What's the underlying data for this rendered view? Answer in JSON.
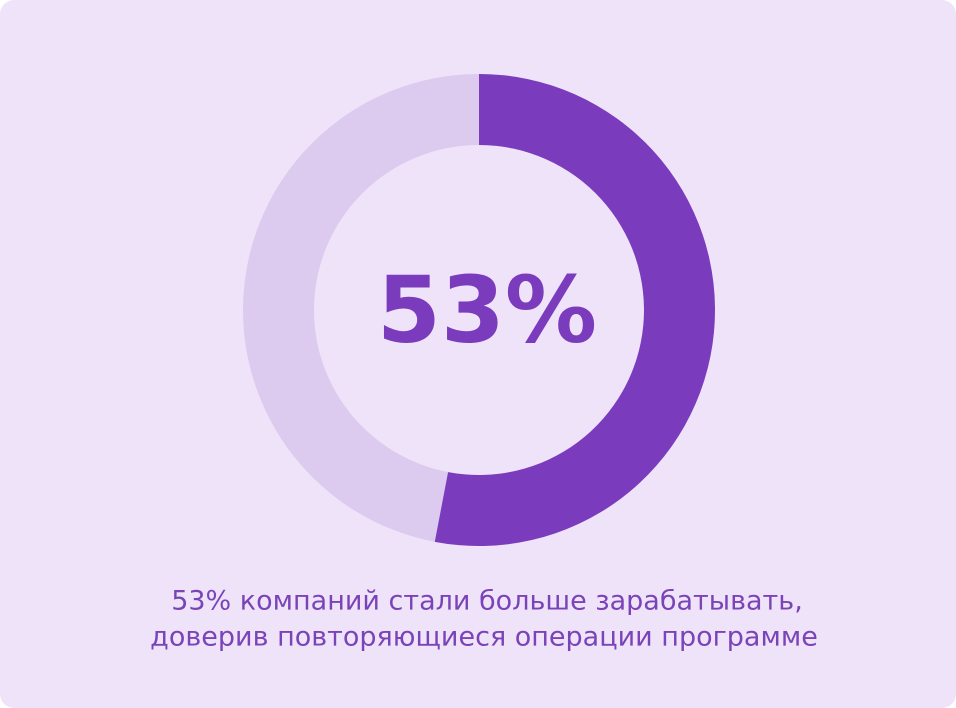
{
  "chart_data": {
    "type": "donut",
    "values": [
      53
    ],
    "value_labels": [
      "53%"
    ],
    "color": "#7a3bbd",
    "track_color": "#dccbef",
    "caption": [
      "53% компаний стали больше зарабатывать,",
      "доверив повторяющиеся операции программе"
    ]
  }
}
